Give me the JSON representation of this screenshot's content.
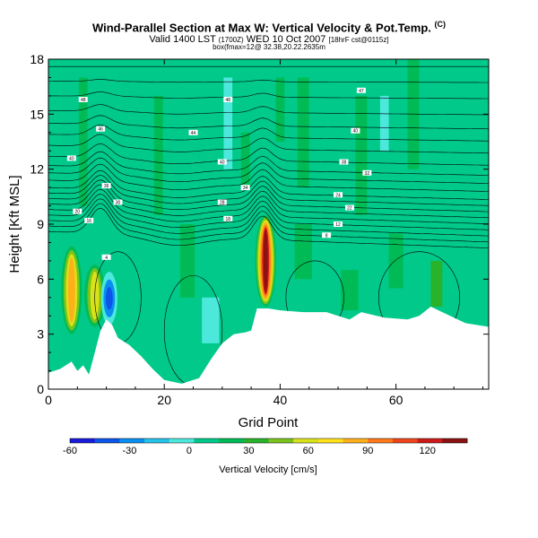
{
  "header": {
    "title": "Wind-Parallel Section at Max W: Vertical Velocity & Pot.Temp.",
    "title_mark": "(C)",
    "subtitle": "Valid 1400 LST",
    "subtitle_small": "(1700Z)",
    "subtitle_date": "WED 10 Oct 2007",
    "subtitle_tail": "[18hrF cst@0115z]",
    "info": "box(fmax=12@ 32.38,20.22.2635m"
  },
  "chart_data": {
    "type": "heatmap",
    "title": "Wind-Parallel Section at Max W: Vertical Velocity & Pot.Temp.",
    "xlabel": "Grid Point",
    "ylabel": "Height [Kft MSL]",
    "xlim": [
      0,
      76
    ],
    "ylim": [
      0,
      18
    ],
    "xticks": [
      0,
      20,
      40,
      60
    ],
    "yticks": [
      0,
      3,
      6,
      9,
      12,
      15,
      18
    ],
    "colorbar": {
      "label": "Vertical Velocity [cm/s]",
      "ticks": [
        -60,
        -30,
        0,
        30,
        60,
        90,
        120
      ],
      "range": [
        -60,
        140
      ],
      "colors": [
        "#1a1adb",
        "#0b55e8",
        "#0a8ff0",
        "#25c2ea",
        "#4de8dc",
        "#00c98a",
        "#00bb55",
        "#29b32a",
        "#7ac31c",
        "#d8e21a",
        "#ffe11a",
        "#ffaf1a",
        "#ff7a1a",
        "#f0451a",
        "#cc1a1a",
        "#8a1212"
      ]
    },
    "terrain": [
      [
        0,
        0.9
      ],
      [
        2,
        1.1
      ],
      [
        4,
        1.5
      ],
      [
        5,
        1.0
      ],
      [
        6,
        1.3
      ],
      [
        7,
        0.8
      ],
      [
        8,
        2.0
      ],
      [
        9,
        3.2
      ],
      [
        10,
        3.8
      ],
      [
        11,
        3.5
      ],
      [
        12,
        2.8
      ],
      [
        14,
        2.4
      ],
      [
        16,
        1.8
      ],
      [
        18,
        1.1
      ],
      [
        20,
        0.5
      ],
      [
        23,
        0.3
      ],
      [
        26,
        0.6
      ],
      [
        28,
        1.6
      ],
      [
        30,
        2.5
      ],
      [
        32,
        3.0
      ],
      [
        34,
        3.1
      ],
      [
        35,
        3.2
      ],
      [
        36,
        4.4
      ],
      [
        38,
        4.4
      ],
      [
        40,
        4.3
      ],
      [
        44,
        4.2
      ],
      [
        48,
        4.2
      ],
      [
        50,
        4.0
      ],
      [
        52,
        3.8
      ],
      [
        54,
        4.2
      ],
      [
        58,
        3.9
      ],
      [
        62,
        3.8
      ],
      [
        64,
        4.0
      ],
      [
        66,
        4.5
      ],
      [
        68,
        4.2
      ],
      [
        70,
        3.9
      ],
      [
        72,
        3.6
      ],
      [
        76,
        3.4
      ]
    ],
    "isentropes": [
      8.6,
      8.9,
      9.2,
      9.5,
      9.8,
      10.1,
      10.4,
      10.7,
      11.0,
      11.4,
      11.8,
      12.2,
      12.7,
      13.3,
      13.9,
      14.5,
      15.2,
      16.0,
      16.8,
      17.6
    ],
    "updrafts": [
      {
        "x": 4,
        "ymin": 3.0,
        "ymax": 7.8,
        "w": 90
      },
      {
        "x": 8,
        "ymin": 3.4,
        "ymax": 6.8,
        "w": 70
      },
      {
        "x": 37.5,
        "ymin": 4.5,
        "ymax": 9.5,
        "w": 140
      }
    ],
    "downdrafts": [
      {
        "x": 10.5,
        "ymin": 3.5,
        "ymax": 6.4,
        "w": -45
      }
    ],
    "contour_labels": [
      "48",
      "48",
      "47",
      "46",
      "44",
      "40",
      "40",
      "40",
      "38",
      "36",
      "34",
      "32",
      "30",
      "28",
      "24",
      "22",
      "20",
      "18",
      "16",
      "12",
      "8",
      "4"
    ]
  }
}
